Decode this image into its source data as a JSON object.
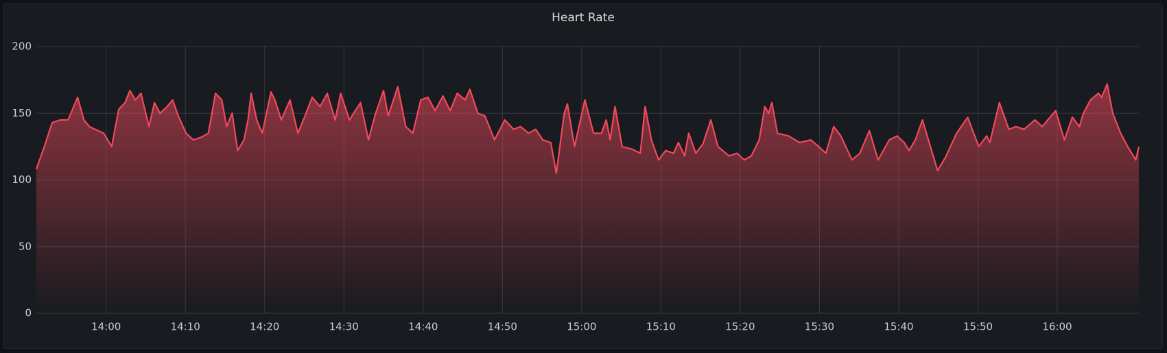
{
  "chart_data": {
    "type": "area",
    "title": "Heart Rate",
    "x": [
      831.2,
      832.2,
      833.2,
      834.2,
      835.2,
      836.4,
      837.2,
      837.9,
      838.6,
      839.7,
      840.7,
      841.6,
      842.4,
      843.0,
      843.7,
      844.4,
      845.4,
      846.1,
      846.8,
      847.7,
      848.4,
      849.1,
      850.1,
      851.0,
      852.0,
      852.9,
      853.8,
      854.6,
      855.2,
      855.9,
      856.6,
      857.4,
      857.9,
      858.3,
      859.0,
      859.7,
      860.8,
      861.3,
      862.1,
      863.2,
      864.2,
      865.1,
      866.0,
      867.0,
      867.9,
      868.9,
      869.6,
      870.7,
      872.1,
      873.1,
      874.0,
      875.0,
      875.6,
      876.8,
      877.8,
      878.7,
      879.7,
      880.6,
      881.5,
      882.5,
      883.4,
      884.3,
      885.3,
      885.9,
      886.9,
      887.8,
      889.0,
      890.3,
      891.4,
      892.3,
      893.3,
      894.2,
      895.1,
      896.1,
      896.8,
      897.8,
      898.2,
      899.1,
      900.4,
      901.5,
      902.5,
      903.1,
      903.6,
      904.2,
      905.1,
      906.4,
      907.4,
      908.0,
      908.8,
      909.7,
      910.6,
      911.6,
      912.2,
      913.0,
      913.5,
      914.4,
      915.3,
      916.3,
      917.2,
      918.6,
      919.6,
      920.5,
      921.4,
      922.4,
      923.1,
      923.6,
      924.0,
      924.7,
      926.1,
      927.5,
      928.9,
      929.9,
      930.8,
      931.8,
      932.7,
      934.1,
      935.1,
      936.3,
      937.4,
      938.8,
      939.8,
      940.7,
      941.3,
      942.1,
      943.0,
      944.0,
      944.9,
      945.9,
      947.3,
      948.7,
      950.1,
      951.1,
      951.5,
      952.7,
      953.9,
      954.8,
      955.8,
      957.2,
      958.1,
      959.8,
      960.9,
      961.9,
      962.8,
      963.3,
      964.2,
      965.2,
      965.6,
      966.3,
      967.0,
      968.0,
      968.9,
      969.9,
      970.3
    ],
    "values": [
      108,
      125,
      143,
      145,
      145,
      162,
      145,
      140,
      138,
      135,
      125,
      153,
      158,
      167,
      160,
      165,
      140,
      158,
      150,
      155,
      160,
      148,
      135,
      130,
      132,
      135,
      165,
      160,
      140,
      150,
      122,
      130,
      145,
      165,
      145,
      135,
      166,
      160,
      145,
      160,
      135,
      148,
      162,
      155,
      165,
      145,
      165,
      145,
      158,
      130,
      150,
      167,
      148,
      170,
      140,
      135,
      160,
      162,
      152,
      163,
      152,
      165,
      160,
      168,
      150,
      148,
      130,
      145,
      138,
      140,
      135,
      138,
      130,
      128,
      105,
      150,
      157,
      125,
      160,
      135,
      135,
      145,
      130,
      155,
      125,
      123,
      120,
      155,
      130,
      115,
      122,
      120,
      128,
      118,
      135,
      120,
      127,
      145,
      125,
      118,
      120,
      115,
      118,
      130,
      155,
      150,
      158,
      135,
      133,
      128,
      130,
      125,
      120,
      140,
      133,
      115,
      120,
      137,
      115,
      130,
      133,
      128,
      122,
      130,
      145,
      125,
      107,
      117,
      135,
      147,
      125,
      133,
      128,
      158,
      138,
      140,
      138,
      145,
      140,
      152,
      130,
      147,
      140,
      150,
      160,
      165,
      162,
      172,
      150,
      135,
      125,
      115,
      125
    ],
    "color": "#f2495c",
    "xlim": [
      831.2,
      970.3
    ],
    "xticks": [
      {
        "value": 840,
        "label": "14:00"
      },
      {
        "value": 850,
        "label": "14:10"
      },
      {
        "value": 860,
        "label": "14:20"
      },
      {
        "value": 870,
        "label": "14:30"
      },
      {
        "value": 880,
        "label": "14:40"
      },
      {
        "value": 890,
        "label": "14:50"
      },
      {
        "value": 900,
        "label": "15:00"
      },
      {
        "value": 910,
        "label": "15:10"
      },
      {
        "value": 920,
        "label": "15:20"
      },
      {
        "value": 930,
        "label": "15:30"
      },
      {
        "value": 940,
        "label": "15:40"
      },
      {
        "value": 950,
        "label": "15:50"
      },
      {
        "value": 960,
        "label": "16:00"
      }
    ],
    "ylim": [
      0,
      200
    ],
    "yticks": [
      0,
      50,
      100,
      150,
      200
    ],
    "grid": true
  }
}
